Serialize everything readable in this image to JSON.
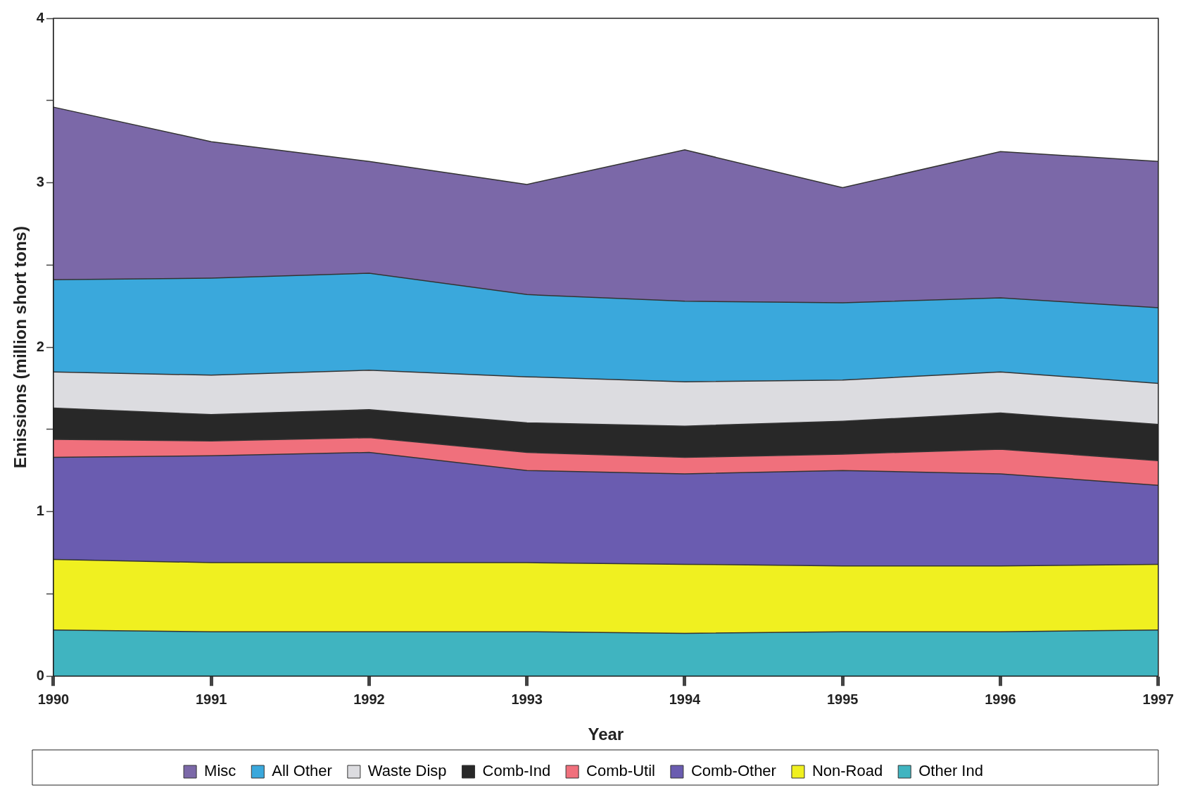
{
  "chart_data": {
    "type": "area",
    "stacked": true,
    "xlabel": "Year",
    "ylabel": "Emissions (million short tons)",
    "categories": [
      "1990",
      "1991",
      "1992",
      "1993",
      "1994",
      "1995",
      "1996",
      "1997"
    ],
    "ylim": [
      0,
      4
    ],
    "yticks": [
      0,
      {
        "value": 0.5,
        "label": null
      },
      1,
      {
        "value": 1.5,
        "label": null
      },
      2,
      {
        "value": 2.5,
        "label": null
      },
      3,
      {
        "value": 3.5,
        "label": null
      },
      4
    ],
    "grid": false,
    "legend": "bottom",
    "series": [
      {
        "name": "Other Ind",
        "color": "#40b4c0",
        "values": [
          0.28,
          0.27,
          0.27,
          0.27,
          0.26,
          0.27,
          0.27,
          0.28
        ]
      },
      {
        "name": "Non-Road",
        "color": "#f0f020",
        "values": [
          0.43,
          0.42,
          0.42,
          0.42,
          0.42,
          0.4,
          0.4,
          0.4
        ]
      },
      {
        "name": "Comb-Other",
        "color": "#6a5cb0",
        "values": [
          0.62,
          0.65,
          0.67,
          0.56,
          0.55,
          0.58,
          0.56,
          0.48
        ]
      },
      {
        "name": "Comb-Util",
        "color": "#f0707c",
        "values": [
          0.11,
          0.09,
          0.09,
          0.11,
          0.1,
          0.1,
          0.15,
          0.15
        ]
      },
      {
        "name": "Comb-Ind",
        "color": "#282828",
        "values": [
          0.19,
          0.16,
          0.17,
          0.18,
          0.19,
          0.2,
          0.22,
          0.22
        ]
      },
      {
        "name": "Waste Disp",
        "color": "#dcdce0",
        "values": [
          0.22,
          0.24,
          0.24,
          0.28,
          0.27,
          0.25,
          0.25,
          0.25
        ]
      },
      {
        "name": "All Other",
        "color": "#3aa8dc",
        "values": [
          0.56,
          0.59,
          0.59,
          0.5,
          0.49,
          0.47,
          0.45,
          0.46
        ]
      },
      {
        "name": "Misc",
        "color": "#7b68a8",
        "values": [
          1.05,
          0.83,
          0.68,
          0.67,
          0.92,
          0.7,
          0.89,
          0.89
        ]
      }
    ]
  }
}
